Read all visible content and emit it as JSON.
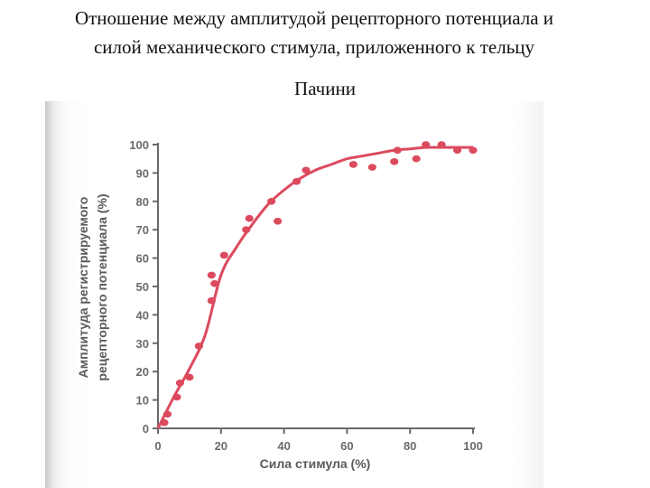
{
  "slide": {
    "title_line1": "Отношение между амплитудой рецепторного потенциала и",
    "title_line2": "силой механического стимула, приложенного к тельцу",
    "title_line3": "Пачини"
  },
  "chart_data": {
    "type": "scatter",
    "title": "",
    "xlabel": "Сила стимула (%)",
    "ylabel_line1": "Амплитуда регистрируемого",
    "ylabel_line2": "рецепторного потенциала (%)",
    "xlim": [
      0,
      100
    ],
    "ylim": [
      0,
      100
    ],
    "xticks": [
      0,
      20,
      40,
      60,
      80,
      100
    ],
    "yticks": [
      0,
      10,
      20,
      30,
      40,
      50,
      60,
      70,
      80,
      90,
      100
    ],
    "grid": false,
    "color": "#dc4a5e",
    "points": [
      {
        "x": 2,
        "y": 2
      },
      {
        "x": 3,
        "y": 5
      },
      {
        "x": 6,
        "y": 11
      },
      {
        "x": 7,
        "y": 16
      },
      {
        "x": 10,
        "y": 18
      },
      {
        "x": 13,
        "y": 29
      },
      {
        "x": 17,
        "y": 45
      },
      {
        "x": 17,
        "y": 54
      },
      {
        "x": 18,
        "y": 51
      },
      {
        "x": 21,
        "y": 61
      },
      {
        "x": 28,
        "y": 70
      },
      {
        "x": 29,
        "y": 74
      },
      {
        "x": 36,
        "y": 80
      },
      {
        "x": 38,
        "y": 73
      },
      {
        "x": 44,
        "y": 87
      },
      {
        "x": 47,
        "y": 91
      },
      {
        "x": 62,
        "y": 93
      },
      {
        "x": 68,
        "y": 92
      },
      {
        "x": 75,
        "y": 94
      },
      {
        "x": 76,
        "y": 98
      },
      {
        "x": 82,
        "y": 95
      },
      {
        "x": 85,
        "y": 100
      },
      {
        "x": 90,
        "y": 100
      },
      {
        "x": 95,
        "y": 98
      },
      {
        "x": 100,
        "y": 98
      }
    ],
    "fit_curve": {
      "x": [
        0,
        5,
        10,
        15,
        20,
        25,
        30,
        35,
        40,
        45,
        50,
        55,
        60,
        65,
        70,
        75,
        80,
        85,
        90,
        95,
        100
      ],
      "y": [
        0,
        11,
        21,
        33,
        54,
        64,
        72,
        79,
        84,
        88,
        91,
        93,
        95,
        96,
        97,
        98,
        98.5,
        99,
        99,
        99,
        99
      ]
    }
  }
}
